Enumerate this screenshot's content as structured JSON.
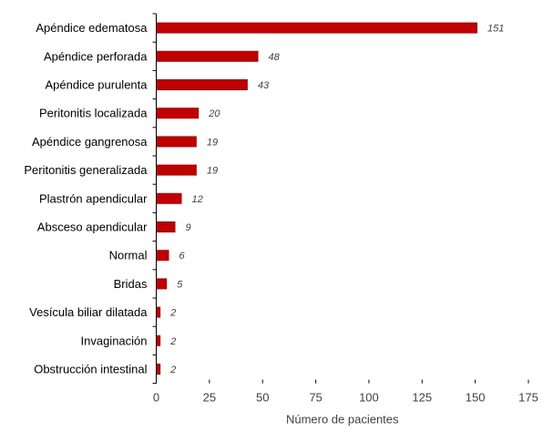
{
  "chart_data": {
    "type": "bar",
    "orientation": "horizontal",
    "categories": [
      "Apéndice edematosa",
      "Apéndice perforada",
      "Apéndice purulenta",
      "Peritonitis localizada",
      "Apéndice gangrenosa",
      "Peritonitis generalizada",
      "Plastrón apendicular",
      "Absceso apendicular",
      "Normal",
      "Bridas",
      "Vesícula biliar dilatada",
      "Invaginación",
      "Obstrucción intestinal"
    ],
    "values": [
      151,
      48,
      43,
      20,
      19,
      19,
      12,
      9,
      6,
      5,
      2,
      2,
      2
    ],
    "value_labels": [
      "151",
      "48",
      "43",
      "20",
      "19",
      "19",
      "12",
      "9",
      "6",
      "5",
      "2",
      "2",
      "2"
    ],
    "xlabel": "Número de pacientes",
    "ylabel": "",
    "xlim": [
      0,
      175
    ],
    "xticks": [
      0,
      25,
      50,
      75,
      100,
      125,
      150,
      175
    ],
    "xtick_labels": [
      "0",
      "25",
      "50",
      "75",
      "100",
      "125",
      "150",
      "175"
    ],
    "grid": false,
    "legend": "none",
    "bar_color": "#c00000"
  }
}
